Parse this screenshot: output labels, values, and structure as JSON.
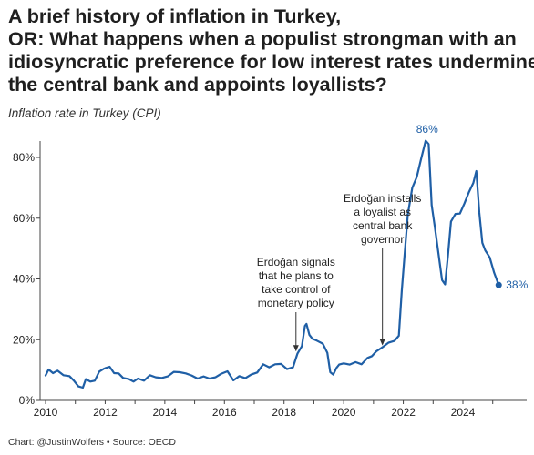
{
  "header": {
    "title_lines": [
      "A brief history of inflation in Turkey,",
      "OR: What happens when a populist strongman with an",
      "idiosyncratic preference for low interest rates undermines",
      "the central bank and appoints loyallists?"
    ],
    "subtitle": "Inflation rate in Turkey (CPI)"
  },
  "footer": {
    "credit": "Chart: @JustinWolfers • Source: OECD"
  },
  "colors": {
    "line": "#1f5fa6",
    "axis": "#444444",
    "text": "#222222"
  },
  "chart_data": {
    "type": "line",
    "title": "Inflation rate in Turkey (CPI)",
    "xlabel": "",
    "ylabel": "",
    "xlim": [
      2010,
      2025.7
    ],
    "ylim": [
      0,
      86
    ],
    "x_ticks": [
      2010,
      2012,
      2014,
      2016,
      2018,
      2020,
      2022,
      2024
    ],
    "x_tick_labels": [
      "2010",
      "2012",
      "2014",
      "2016",
      "2018",
      "2020",
      "2022",
      "2024"
    ],
    "y_ticks": [
      0,
      20,
      40,
      60,
      80
    ],
    "y_tick_labels": [
      "0%",
      "20%",
      "40%",
      "60%",
      "80%"
    ],
    "grid": false,
    "series": [
      {
        "x": [
          2010.0,
          2010.1,
          2010.25,
          2010.4,
          2010.6,
          2010.8,
          2010.95,
          2011.1,
          2011.25,
          2011.35,
          2011.5,
          2011.65,
          2011.8,
          2011.95,
          2012.0,
          2012.15,
          2012.3,
          2012.45,
          2012.6,
          2012.8,
          2012.95,
          2013.1,
          2013.3,
          2013.5,
          2013.7,
          2013.9,
          2014.1,
          2014.3,
          2014.5,
          2014.7,
          2014.9,
          2015.1,
          2015.3,
          2015.5,
          2015.7,
          2015.9,
          2016.1,
          2016.3,
          2016.5,
          2016.7,
          2016.9,
          2017.1,
          2017.3,
          2017.5,
          2017.7,
          2017.9,
          2018.1,
          2018.3,
          2018.45,
          2018.6,
          2018.7,
          2018.75,
          2018.85,
          2018.95,
          2019.1,
          2019.3,
          2019.45,
          2019.55,
          2019.65,
          2019.75,
          2019.85,
          2020.0,
          2020.2,
          2020.4,
          2020.6,
          2020.8,
          2020.95,
          2021.1,
          2021.3,
          2021.5,
          2021.7,
          2021.85,
          2021.95,
          2022.05,
          2022.15,
          2022.3,
          2022.45,
          2022.6,
          2022.75,
          2022.85,
          2022.95,
          2023.05,
          2023.15,
          2023.3,
          2023.4,
          2023.5,
          2023.6,
          2023.75,
          2023.9,
          2024.05,
          2024.2,
          2024.35,
          2024.45,
          2024.55,
          2024.65,
          2024.75,
          2024.9,
          2025.05,
          2025.2
        ],
        "values": [
          8.2,
          10.2,
          9.0,
          9.8,
          8.3,
          8.0,
          6.5,
          4.6,
          4.2,
          7.0,
          6.2,
          6.5,
          9.5,
          10.4,
          10.6,
          11.1,
          9.0,
          8.9,
          7.4,
          7.0,
          6.2,
          7.2,
          6.5,
          8.3,
          7.6,
          7.4,
          7.9,
          9.4,
          9.3,
          8.9,
          8.2,
          7.2,
          7.9,
          7.2,
          7.6,
          8.8,
          9.6,
          6.6,
          8.0,
          7.3,
          8.5,
          9.2,
          11.9,
          10.9,
          11.9,
          12.0,
          10.3,
          10.9,
          15.4,
          17.9,
          24.5,
          25.2,
          21.6,
          20.3,
          19.7,
          18.7,
          15.7,
          9.3,
          8.5,
          10.6,
          11.8,
          12.2,
          11.8,
          12.6,
          11.9,
          14.0,
          14.6,
          16.2,
          17.5,
          19.0,
          19.6,
          21.3,
          36.1,
          48.7,
          61.1,
          70.0,
          73.5,
          79.6,
          85.5,
          84.4,
          64.3,
          57.7,
          50.5,
          39.6,
          38.2,
          47.8,
          58.9,
          61.4,
          61.5,
          64.8,
          68.5,
          71.6,
          75.5,
          61.8,
          51.9,
          49.4,
          47.1,
          42.0,
          38.0
        ],
        "point_labels": [
          {
            "x": 2022.8,
            "value": 86,
            "text": "86%"
          },
          {
            "x": 2025.2,
            "value": 38,
            "text": "38%"
          }
        ]
      }
    ],
    "annotations": [
      {
        "text_lines": [
          "Erdoğan signals",
          "that he plans to",
          "take control of",
          "monetary policy"
        ],
        "x": 2018.4,
        "value": 15.5
      },
      {
        "text_lines": [
          "Erdoğan installs",
          "a loyalist as",
          "central bank",
          "governor"
        ],
        "x": 2021.3,
        "value": 17.5
      }
    ]
  }
}
